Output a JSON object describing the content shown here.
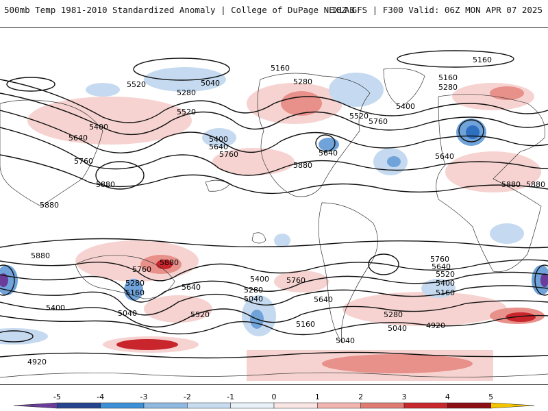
{
  "header": {
    "left_title": "500mb Temp 1981-2010 Standardized Anomaly | College of DuPage NEXLAB",
    "right_title": "18Z GFS | F300 Valid: 06Z MON APR 07 2025"
  },
  "colorbar": {
    "tick_labels": [
      "-5",
      "-4",
      "-3",
      "-2",
      "-1",
      "0",
      "1",
      "2",
      "3",
      "4",
      "5"
    ],
    "colors": [
      "#6a3d9a",
      "#27448f",
      "#3d8fd6",
      "#8fb9e0",
      "#c7dcef",
      "#e9f1f9",
      "#f9e6e4",
      "#f2b4ae",
      "#e07b74",
      "#c7282c",
      "#8b0f14",
      "#f5c400"
    ]
  },
  "map": {
    "legend_colors": {
      "neg_strong": "#2f6fc0",
      "neg_mid": "#6fa3da",
      "neg_light": "#c5daf0",
      "pos_light": "#f6d3d0",
      "pos_mid": "#e8908a",
      "pos_strong": "#c8262c"
    },
    "contour_labels": [
      {
        "text": "5160",
        "id": "c1"
      },
      {
        "text": "5160",
        "id": "c2"
      },
      {
        "text": "5160",
        "id": "c3"
      },
      {
        "text": "5040",
        "id": "c4"
      },
      {
        "text": "5280",
        "id": "c5"
      },
      {
        "text": "5280",
        "id": "c6"
      },
      {
        "text": "5280",
        "id": "c7"
      },
      {
        "text": "5520",
        "id": "c8"
      },
      {
        "text": "5520",
        "id": "c9"
      },
      {
        "text": "5400",
        "id": "c10"
      },
      {
        "text": "5400",
        "id": "c11"
      },
      {
        "text": "5640",
        "id": "c12"
      },
      {
        "text": "5640",
        "id": "c13"
      },
      {
        "text": "5760",
        "id": "c14"
      },
      {
        "text": "5760",
        "id": "c15"
      },
      {
        "text": "5880",
        "id": "c16"
      },
      {
        "text": "5880",
        "id": "c17"
      },
      {
        "text": "5880",
        "id": "c18"
      },
      {
        "text": "5880",
        "id": "c19"
      },
      {
        "text": "5880",
        "id": "c20"
      },
      {
        "text": "5520",
        "id": "c21"
      },
      {
        "text": "5640",
        "id": "c22"
      },
      {
        "text": "5760",
        "id": "c23"
      },
      {
        "text": "5400",
        "id": "c24"
      },
      {
        "text": "5640",
        "id": "c25"
      },
      {
        "text": "5880",
        "id": "c26"
      },
      {
        "text": "5760",
        "id": "c27"
      },
      {
        "text": "5880",
        "id": "c28"
      },
      {
        "text": "5280",
        "id": "c29"
      },
      {
        "text": "5160",
        "id": "c30"
      },
      {
        "text": "5640",
        "id": "c31"
      },
      {
        "text": "5400",
        "id": "c32"
      },
      {
        "text": "5520",
        "id": "c33"
      },
      {
        "text": "5040",
        "id": "c34"
      },
      {
        "text": "5400",
        "id": "c35"
      },
      {
        "text": "5760",
        "id": "c36"
      },
      {
        "text": "5280",
        "id": "c37"
      },
      {
        "text": "5040",
        "id": "c38"
      },
      {
        "text": "5640",
        "id": "c39"
      },
      {
        "text": "5160",
        "id": "c40"
      },
      {
        "text": "5040",
        "id": "c41"
      },
      {
        "text": "5280",
        "id": "c42"
      },
      {
        "text": "5040",
        "id": "c43"
      },
      {
        "text": "4920",
        "id": "c44"
      },
      {
        "text": "5760",
        "id": "c45"
      },
      {
        "text": "5640",
        "id": "c46"
      },
      {
        "text": "5520",
        "id": "c47"
      },
      {
        "text": "5400",
        "id": "c48"
      },
      {
        "text": "5160",
        "id": "c49"
      },
      {
        "text": "4920",
        "id": "c50"
      }
    ]
  }
}
